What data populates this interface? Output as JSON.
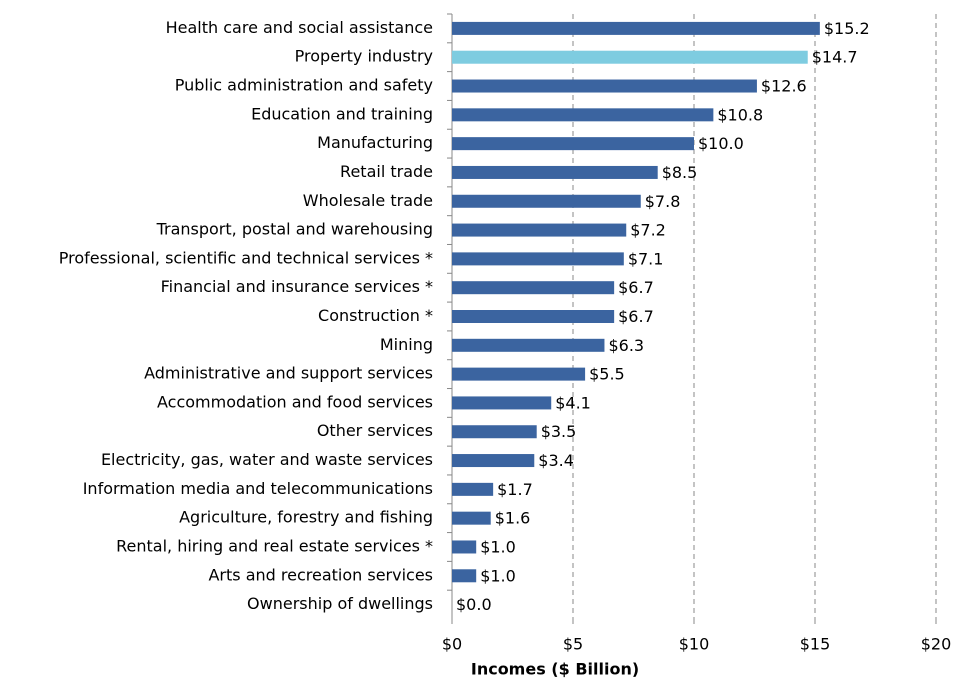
{
  "chart_data": {
    "type": "hbar",
    "x_label": "Incomes ($ Billion)",
    "categories": [
      "Health care and social assistance",
      "Property industry",
      "Public administration and safety",
      "Education and training",
      "Manufacturing",
      "Retail trade",
      "Wholesale trade",
      "Transport, postal and warehousing",
      "Professional, scientific and technical services *",
      "Financial and insurance services *",
      "Construction *",
      "Mining",
      "Administrative and support services",
      "Accommodation and food services",
      "Other services",
      "Electricity, gas, water and waste services",
      "Information media and telecommunications",
      "Agriculture, forestry and fishing",
      "Rental, hiring and real estate services *",
      "Arts and recreation services",
      "Ownership of dwellings"
    ],
    "values": [
      15.2,
      14.7,
      12.6,
      10.8,
      10.0,
      8.5,
      7.8,
      7.2,
      7.1,
      6.7,
      6.7,
      6.3,
      5.5,
      4.1,
      3.5,
      3.4,
      1.7,
      1.6,
      1.0,
      1.0,
      0.0
    ],
    "value_labels": [
      "$15.2",
      "$14.7",
      "$12.6",
      "$10.8",
      "$10.0",
      "$8.5",
      "$7.8",
      "$7.2",
      "$7.1",
      "$6.7",
      "$6.7",
      "$6.3",
      "$5.5",
      "$4.1",
      "$3.5",
      "$3.4",
      "$1.7",
      "$1.6",
      "$1.0",
      "$1.0",
      "$0.0"
    ],
    "colors": [
      "#3b64a0",
      "#7ecce0",
      "#3b64a0",
      "#3b64a0",
      "#3b64a0",
      "#3b64a0",
      "#3b64a0",
      "#3b64a0",
      "#3b64a0",
      "#3b64a0",
      "#3b64a0",
      "#3b64a0",
      "#3b64a0",
      "#3b64a0",
      "#3b64a0",
      "#3b64a0",
      "#3b64a0",
      "#3b64a0",
      "#3b64a0",
      "#3b64a0",
      "#3b64a0"
    ],
    "xlim": [
      0,
      20
    ],
    "xticks": [
      {
        "value": 0,
        "label": "$0"
      },
      {
        "value": 5,
        "label": "$5"
      },
      {
        "value": 10,
        "label": "$10"
      },
      {
        "value": 15,
        "label": "$15"
      },
      {
        "value": 20,
        "label": "$20"
      }
    ],
    "grid": true
  }
}
